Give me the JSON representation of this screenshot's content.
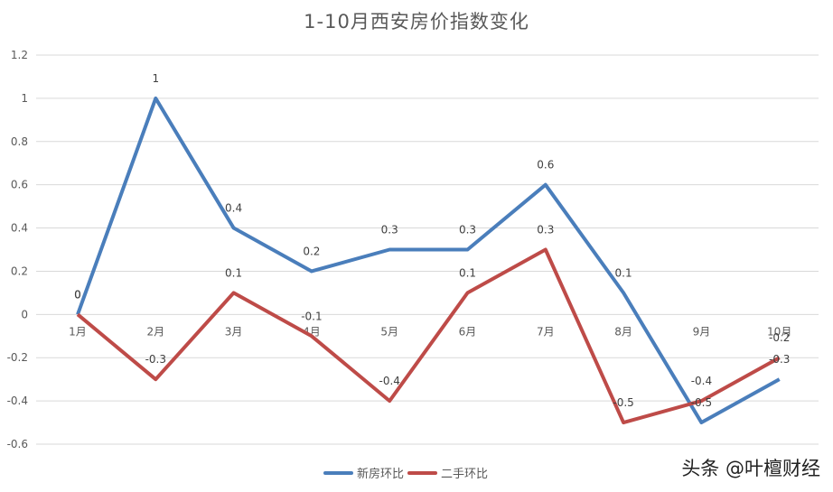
{
  "chart_data": {
    "type": "line",
    "title": "1-10月西安房价指数变化",
    "xlabel": "",
    "ylabel": "",
    "categories": [
      "1月",
      "2月",
      "3月",
      "4月",
      "5月",
      "6月",
      "7月",
      "8月",
      "9月",
      "10月"
    ],
    "series": [
      {
        "name": "新房环比",
        "color": "#4a7ebb",
        "values": [
          0,
          1,
          0.4,
          0.2,
          0.3,
          0.3,
          0.6,
          0.1,
          -0.5,
          -0.3
        ]
      },
      {
        "name": "二手环比",
        "color": "#be4b48",
        "values": [
          0,
          -0.3,
          0.1,
          -0.1,
          -0.4,
          0.1,
          0.3,
          -0.5,
          -0.4,
          -0.2
        ]
      }
    ],
    "ylim": [
      -0.6,
      1.2
    ],
    "yticks": [
      1.2,
      1,
      0.8,
      0.6,
      0.4,
      0.2,
      0,
      -0.2,
      -0.4,
      -0.6
    ],
    "ytick_labels": [
      "1.2",
      "1",
      "0.8",
      "0.6",
      "0.4",
      "0.2",
      "0",
      "-0.2",
      "-0.4",
      "-0.6"
    ],
    "grid": true,
    "legend_position": "bottom",
    "data_labels": true
  },
  "legend": {
    "items": [
      {
        "label": "新房环比",
        "color": "#4a7ebb"
      },
      {
        "label": "二手环比",
        "color": "#be4b48"
      }
    ]
  },
  "watermark": "头条 @叶檀财经"
}
